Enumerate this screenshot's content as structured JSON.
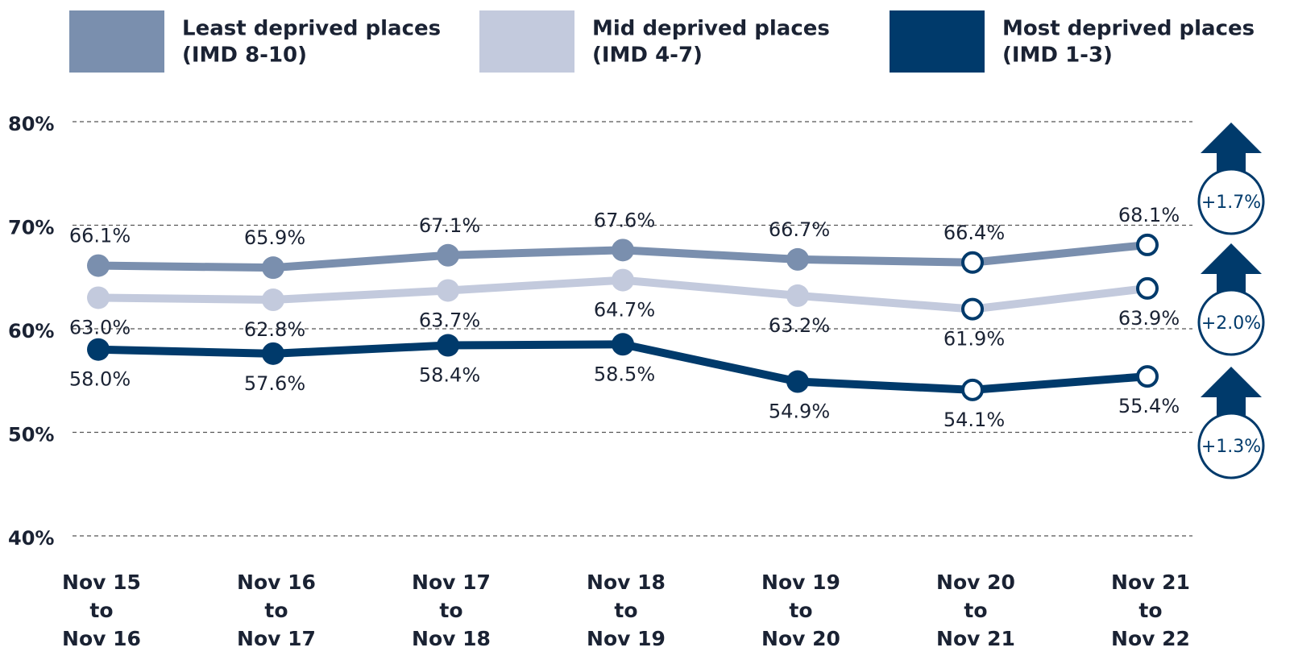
{
  "chart_data": {
    "type": "line",
    "categories": [
      [
        "Nov 15",
        "to",
        "Nov 16"
      ],
      [
        "Nov 16",
        "to",
        "Nov 17"
      ],
      [
        "Nov 17",
        "to",
        "Nov 18"
      ],
      [
        "Nov 18",
        "to",
        "Nov 19"
      ],
      [
        "Nov 19",
        "to",
        "Nov 20"
      ],
      [
        "Nov 20",
        "to",
        "Nov 21"
      ],
      [
        "Nov 21",
        "to",
        "Nov 22"
      ]
    ],
    "series": [
      {
        "name": [
          "Least deprived places",
          "(IMD 8-10)"
        ],
        "color": "#7a8fae",
        "values": [
          66.1,
          65.9,
          67.1,
          67.6,
          66.7,
          66.4,
          68.1
        ],
        "value_labels": [
          "66.1%",
          "65.9%",
          "67.1%",
          "67.6%",
          "66.7%",
          "66.4%",
          "68.1%"
        ],
        "change": "+1.7%"
      },
      {
        "name": [
          "Mid deprived places",
          "(IMD 4-7)"
        ],
        "color": "#c3cadd",
        "values": [
          63.0,
          62.8,
          63.7,
          64.7,
          63.2,
          61.9,
          63.9
        ],
        "value_labels": [
          "63.0%",
          "62.8%",
          "63.7%",
          "64.7%",
          "63.2%",
          "61.9%",
          "63.9%"
        ],
        "change": "+2.0%"
      },
      {
        "name": [
          "Most deprived places",
          "(IMD 1-3)"
        ],
        "color": "#003a6b",
        "values": [
          58.0,
          57.6,
          58.4,
          58.5,
          54.9,
          54.1,
          55.4
        ],
        "value_labels": [
          "58.0%",
          "57.6%",
          "58.4%",
          "58.5%",
          "54.9%",
          "54.1%",
          "55.4%"
        ],
        "change": "+1.3%"
      }
    ],
    "ylim": [
      40,
      80
    ],
    "yticks": [
      {
        "value": 40,
        "label": "40%"
      },
      {
        "value": 50,
        "label": "50%"
      },
      {
        "value": 60,
        "label": "60%"
      },
      {
        "value": 70,
        "label": "70%"
      },
      {
        "value": 80,
        "label": "80%"
      }
    ],
    "grid": true,
    "hollow_markers": [
      5,
      6
    ]
  }
}
